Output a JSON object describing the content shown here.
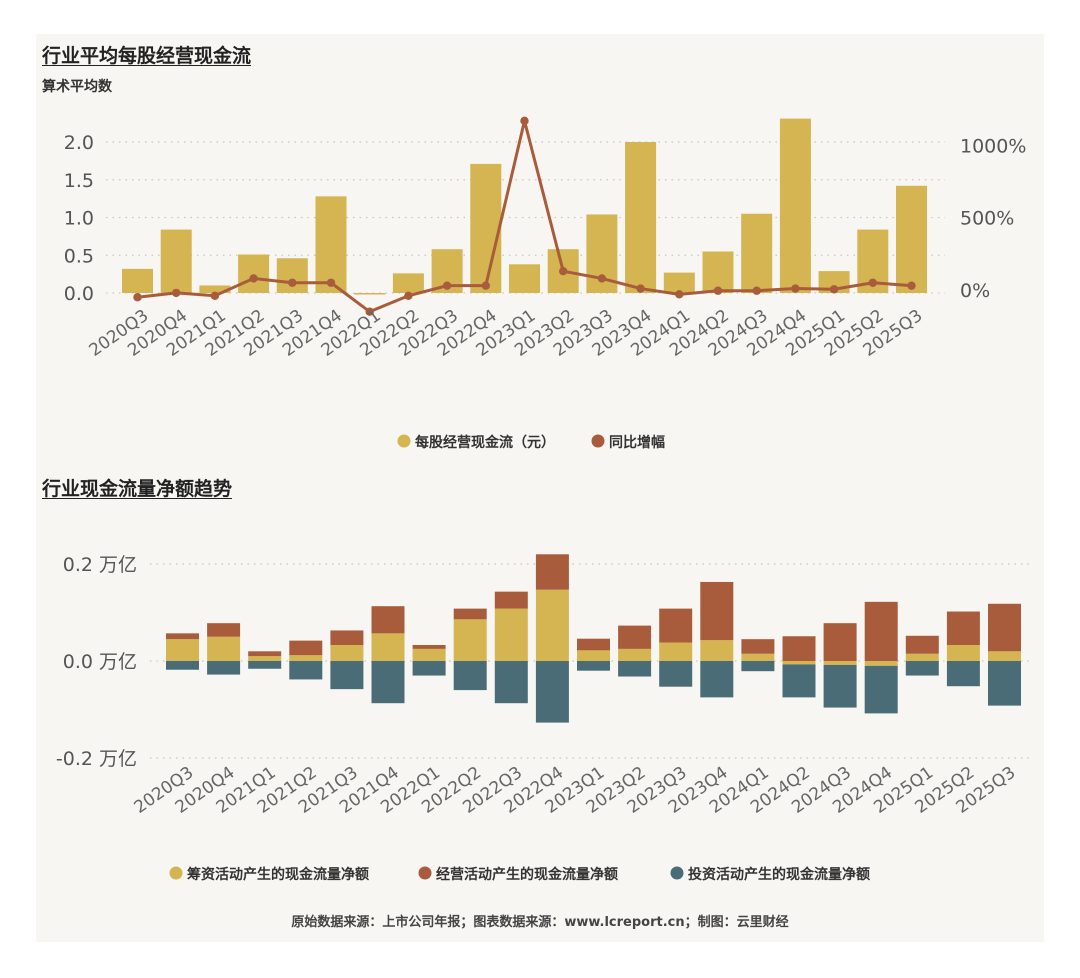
{
  "chart1": {
    "title": "行业平均每股经营现金流",
    "subtitle": "算术平均数",
    "legend": [
      "每股经营现金流（元）",
      "同比增幅"
    ],
    "colors": {
      "bar": "#d4b552",
      "line": "#a85c3c"
    },
    "y_left_ticks": [
      "0.0",
      "0.5",
      "1.0",
      "1.5",
      "2.0"
    ],
    "y_right_ticks": [
      "0%",
      "500%",
      "1000%"
    ]
  },
  "chart2": {
    "title": "行业现金流量净额趋势",
    "legend": [
      "筹资活动产生的现金流量净额",
      "经营活动产生的现金流量净额",
      "投资活动产生的现金流量净额"
    ],
    "colors": {
      "financing": "#d4b552",
      "operating": "#a85c3c",
      "investing": "#4a6c76"
    },
    "y_ticks": [
      "-0.2 万亿",
      "0.0 万亿",
      "0.2 万亿"
    ]
  },
  "footer": "原始数据来源：上市公司年报；图表数据来源：www.lcreport.cn；制图：云里财经",
  "chart_data": [
    {
      "type": "bar",
      "categories": [
        "2020Q3",
        "2020Q4",
        "2021Q1",
        "2021Q2",
        "2021Q3",
        "2021Q4",
        "2022Q1",
        "2022Q2",
        "2022Q3",
        "2022Q4",
        "2023Q1",
        "2023Q2",
        "2023Q3",
        "2023Q4",
        "2024Q1",
        "2024Q2",
        "2024Q3",
        "2024Q4",
        "2025Q1",
        "2025Q2",
        "2025Q3"
      ],
      "series": [
        {
          "name": "每股经营现金流（元）",
          "axis": "left",
          "values": [
            0.32,
            0.84,
            0.1,
            0.51,
            0.46,
            1.28,
            -0.02,
            0.26,
            0.58,
            1.71,
            0.38,
            0.58,
            1.04,
            2.0,
            0.27,
            0.55,
            1.05,
            2.31,
            0.29,
            0.84,
            1.42
          ]
        },
        {
          "name": "同比增幅",
          "type": "line",
          "axis": "right",
          "values": [
            -50,
            -20,
            -40,
            80,
            50,
            50,
            -150,
            -40,
            30,
            30,
            1170,
            130,
            80,
            10,
            -30,
            -5,
            -5,
            10,
            5,
            50,
            30
          ]
        }
      ],
      "ylim": [
        -0.2,
        2.3
      ],
      "y2lim": [
        -150,
        1170
      ]
    },
    {
      "type": "bar",
      "stacked": true,
      "categories": [
        "2020Q3",
        "2020Q4",
        "2021Q1",
        "2021Q2",
        "2021Q3",
        "2021Q4",
        "2022Q1",
        "2022Q2",
        "2022Q3",
        "2022Q4",
        "2023Q1",
        "2023Q2",
        "2023Q3",
        "2023Q4",
        "2024Q1",
        "2024Q2",
        "2024Q3",
        "2024Q4",
        "2025Q1",
        "2025Q2",
        "2025Q3"
      ],
      "series": [
        {
          "name": "筹资活动产生的现金流量净额",
          "values": [
            0.045,
            0.05,
            0.01,
            0.012,
            0.033,
            0.057,
            0.025,
            0.086,
            0.108,
            0.147,
            0.022,
            0.025,
            0.038,
            0.043,
            0.015,
            -0.007,
            -0.008,
            -0.01,
            0.015,
            0.033,
            0.02
          ]
        },
        {
          "name": "经营活动产生的现金流量净额",
          "values": [
            0.012,
            0.028,
            0.01,
            0.03,
            0.03,
            0.056,
            0.008,
            0.022,
            0.035,
            0.073,
            0.024,
            0.048,
            0.07,
            0.12,
            0.03,
            0.051,
            0.078,
            0.122,
            0.037,
            0.069,
            0.098
          ]
        },
        {
          "name": "投资活动产生的现金流量净额",
          "values": [
            -0.018,
            -0.028,
            -0.016,
            -0.038,
            -0.058,
            -0.087,
            -0.03,
            -0.06,
            -0.087,
            -0.127,
            -0.02,
            -0.032,
            -0.053,
            -0.075,
            -0.021,
            -0.068,
            -0.088,
            -0.098,
            -0.03,
            -0.052,
            -0.092
          ]
        }
      ],
      "ylim": [
        -0.2,
        0.2
      ],
      "ylabel": ""
    }
  ]
}
